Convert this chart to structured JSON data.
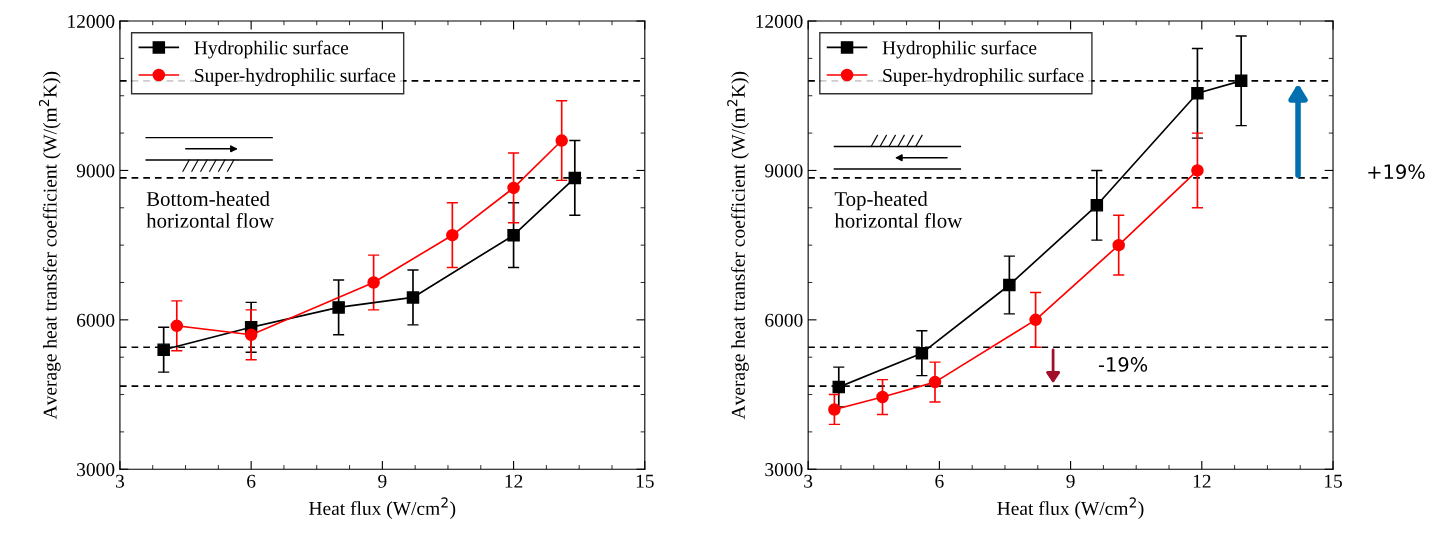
{
  "chart_data": [
    {
      "type": "line",
      "xlabel": "Heat flux (W/cm$^{2}$)",
      "ylabel": "Average heat transfer coefficient (W/(m$^{2}$K))",
      "xlim": [
        3,
        15
      ],
      "xticks": [
        3,
        6,
        9,
        12,
        15
      ],
      "ylim": [
        3000,
        12000
      ],
      "yticks": [
        3000,
        6000,
        9000,
        12000
      ],
      "legend": "top left",
      "grid": false,
      "series": [
        {
          "name": "Hydrophilic surface",
          "color": "#000000",
          "marker": "square",
          "x": [
            4,
            6,
            8,
            9.7,
            12,
            13.4
          ],
          "values": [
            5400,
            5850,
            6250,
            6450,
            7700,
            8850
          ],
          "errors": [
            450,
            500,
            550,
            550,
            650,
            750
          ]
        },
        {
          "name": "Super-hydrophilic surface",
          "color": "#ff0000",
          "marker": "circle",
          "x": [
            4.3,
            6,
            8.8,
            10.6,
            12,
            13.1
          ],
          "values": [
            5880,
            5700,
            6750,
            7700,
            8650,
            9600
          ],
          "errors": [
            500,
            500,
            550,
            650,
            700,
            800
          ]
        }
      ],
      "ref_lines": [
        {
          "axis": "y",
          "value": 10800,
          "color": "#000000",
          "line_style": "dashed"
        },
        {
          "axis": "y",
          "value": 8850,
          "color": "#000000",
          "line_style": "dashed"
        },
        {
          "axis": "y",
          "value": 5450,
          "color": "#000000",
          "line_style": "dashed"
        },
        {
          "axis": "y",
          "value": 4670,
          "color": "#000000",
          "line_style": "dashed"
        }
      ],
      "annotations": [
        "Bottom-heated\nhorizontal flow"
      ]
    },
    {
      "type": "line",
      "xlabel": "Heat flux (W/cm$^{2}$)",
      "ylabel": "Average heat transfer coefficient (W/(m$^{2}$K))",
      "xlim": [
        3,
        15
      ],
      "xticks": [
        3,
        6,
        9,
        12,
        15
      ],
      "ylim": [
        3000,
        12000
      ],
      "yticks": [
        3000,
        6000,
        9000,
        12000
      ],
      "legend": "top left",
      "grid": false,
      "series": [
        {
          "name": "Hydrophilic surface",
          "color": "#000000",
          "marker": "square",
          "x": [
            3.7,
            5.6,
            7.6,
            9.6,
            11.9,
            12.9
          ],
          "values": [
            4650,
            5330,
            6700,
            8300,
            10550,
            10800
          ],
          "errors": [
            400,
            450,
            580,
            700,
            900,
            900
          ]
        },
        {
          "name": "Super-hydrophilic surface",
          "color": "#ff0000",
          "marker": "circle",
          "x": [
            3.6,
            4.7,
            5.9,
            8.2,
            10.1,
            11.9
          ],
          "values": [
            4200,
            4450,
            4750,
            6000,
            7500,
            9000
          ],
          "errors": [
            300,
            350,
            400,
            550,
            600,
            750
          ]
        }
      ],
      "ref_lines": [
        {
          "axis": "y",
          "value": 10800,
          "color": "#000000",
          "line_style": "dashed"
        },
        {
          "axis": "y",
          "value": 8850,
          "color": "#000000",
          "line_style": "dashed"
        },
        {
          "axis": "y",
          "value": 5450,
          "color": "#000000",
          "line_style": "dashed"
        },
        {
          "axis": "y",
          "value": 4670,
          "color": "#000000",
          "line_style": "dashed"
        }
      ],
      "annotations": [
        "Top-heated\nhorizontal flow",
        "+19%",
        "-19%"
      ]
    }
  ]
}
